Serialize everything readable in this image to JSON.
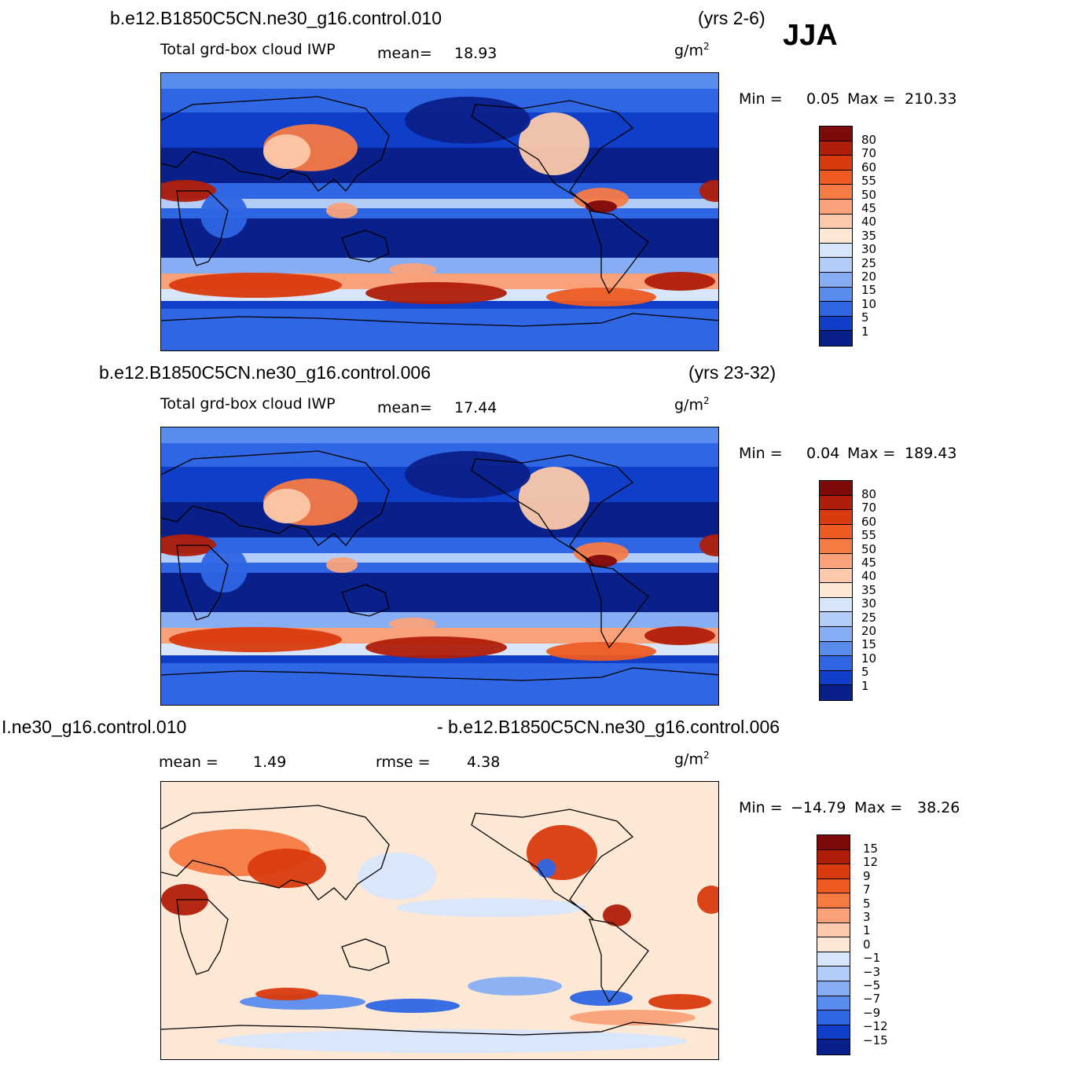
{
  "season": "JJA",
  "panels": [
    {
      "case": "b.e12.B1850C5CN.ne30_g16.control.010",
      "years": "(yrs 2-6)",
      "variable": "Total grd-box cloud IWP",
      "mean_label": "mean=",
      "mean_value": "18.93",
      "units": "g/m",
      "units_sup": "2",
      "min_label": "Min =",
      "min_value": "0.05",
      "max_label": "Max =",
      "max_value": "210.33",
      "levels": [
        "80",
        "70",
        "60",
        "55",
        "50",
        "45",
        "40",
        "35",
        "30",
        "25",
        "20",
        "15",
        "10",
        "5",
        "1"
      ]
    },
    {
      "case": "b.e12.B1850C5CN.ne30_g16.control.006",
      "years": "(yrs 23-32)",
      "variable": "Total grd-box cloud IWP",
      "mean_label": "mean=",
      "mean_value": "17.44",
      "units": "g/m",
      "units_sup": "2",
      "min_label": "Min =",
      "min_value": "0.04",
      "max_label": "Max =",
      "max_value": "189.43",
      "levels": [
        "80",
        "70",
        "60",
        "55",
        "50",
        "45",
        "40",
        "35",
        "30",
        "25",
        "20",
        "15",
        "10",
        "5",
        "1"
      ]
    },
    {
      "case_left": "І.ne30_g16.control.010",
      "case_right": "- b.e12.B1850C5CN.ne30_g16.control.006",
      "mean_label": "mean =",
      "mean_value": "1.49",
      "rmse_label": "rmse =",
      "rmse_value": "4.38",
      "units": "g/m",
      "units_sup": "2",
      "min_label": "Min =",
      "min_value": "−14.79",
      "max_label": "Max =",
      "max_value": "38.26",
      "levels": [
        "15",
        "12",
        "9",
        "7",
        "5",
        "3",
        "1",
        "0",
        "−1",
        "−3",
        "−5",
        "−7",
        "−9",
        "−12",
        "−15"
      ]
    }
  ],
  "colors": {
    "abs_scale": [
      "#7f0a0a",
      "#b01e0a",
      "#d93a0e",
      "#ee5a22",
      "#f67a44",
      "#f9a27a",
      "#fcc9aa",
      "#fde8d5",
      "#d8e6fb",
      "#b4cdf8",
      "#87aef4",
      "#5a8cf0",
      "#2e66e4",
      "#0f3fc8",
      "#091f8a"
    ],
    "diff_scale": [
      "#7f0a0a",
      "#b01e0a",
      "#d93a0e",
      "#ee5a22",
      "#f67a44",
      "#f9a27a",
      "#fcc9aa",
      "#fde8d5",
      "#d8e6fb",
      "#b4cdf8",
      "#87aef4",
      "#5a8cf0",
      "#2e66e4",
      "#0f3fc8",
      "#091f8a"
    ]
  }
}
